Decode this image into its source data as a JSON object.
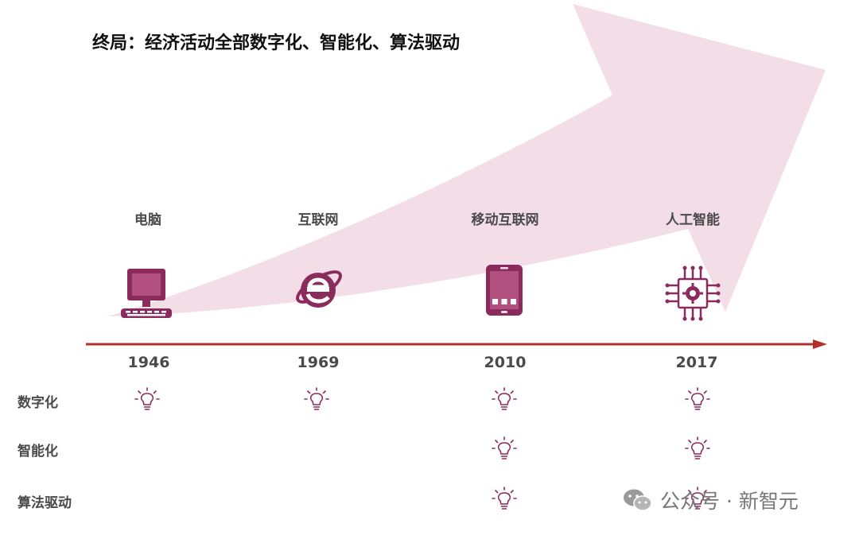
{
  "title": "终局：经济活动全部数字化、智能化、算法驱动",
  "eras": [
    {
      "label": "电脑",
      "year": "1946",
      "icon": "desktop-computer-icon"
    },
    {
      "label": "互联网",
      "year": "1969",
      "icon": "internet-explorer-icon"
    },
    {
      "label": "移动互联网",
      "year": "2010",
      "icon": "smartphone-icon"
    },
    {
      "label": "人工智能",
      "year": "2017",
      "icon": "ai-chip-icon"
    }
  ],
  "rows": [
    {
      "label": "数字化",
      "marks": [
        true,
        true,
        true,
        true
      ]
    },
    {
      "label": "智能化",
      "marks": [
        false,
        false,
        true,
        true
      ]
    },
    {
      "label": "算法驱动",
      "marks": [
        false,
        false,
        true,
        true
      ]
    }
  ],
  "colors": {
    "arrow_fill": "#f2dce6",
    "icon": "#8b2a5c",
    "timeline": "#b5302a"
  },
  "watermark": "公众号 · 新智元"
}
